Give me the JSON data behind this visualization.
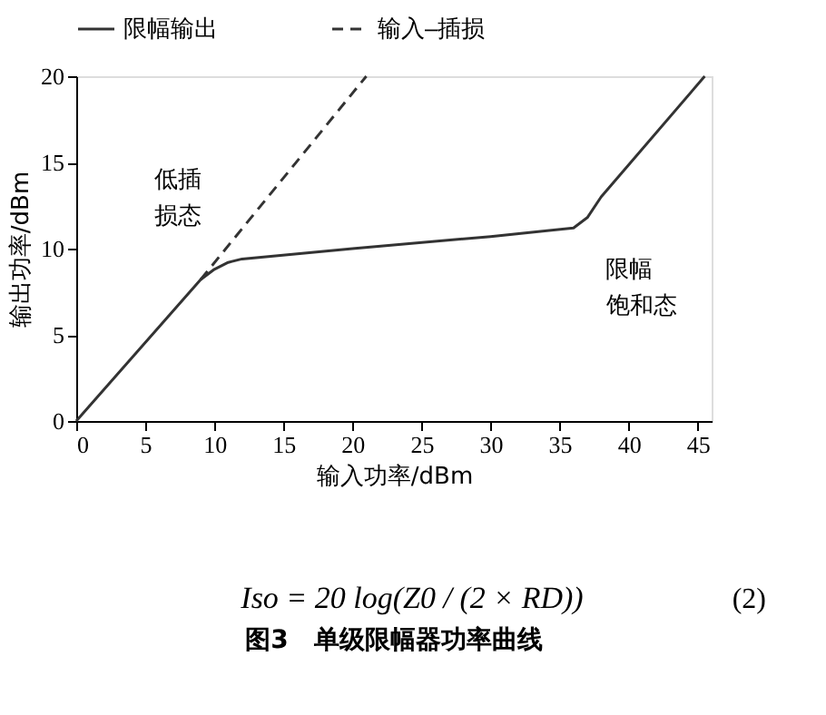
{
  "chart_data": {
    "type": "line",
    "title": "图3　单级限幅器功率曲线",
    "xlabel": "输入功率/dBm",
    "ylabel": "输出功率/dBm",
    "xlim": [
      0,
      46
    ],
    "xticks": [
      0,
      5,
      10,
      15,
      20,
      25,
      30,
      35,
      40,
      45
    ],
    "ylim": [
      0,
      20
    ],
    "yticks": [
      0,
      5,
      10,
      15,
      20
    ],
    "grid": false,
    "legend": "top",
    "marker": "none",
    "series": [
      {
        "name": "限幅输出",
        "color": "#333333",
        "line_style": "solid",
        "x": [
          0,
          9,
          10,
          11,
          12,
          20,
          30,
          36,
          37,
          38,
          45.5
        ],
        "values": [
          0,
          8.2,
          8.8,
          9.2,
          9.4,
          10,
          10.7,
          11.2,
          11.8,
          13,
          20
        ]
      },
      {
        "name": "输入–插损",
        "color": "#333333",
        "line_style": "dashed",
        "x": [
          9,
          21
        ],
        "values": [
          8.2,
          20
        ]
      }
    ],
    "annotations": [
      "低插",
      "损态",
      "限幅",
      "饱和态",
      "Iso = 20 log(Z0 / (2 × RD))",
      "(2)"
    ]
  }
}
